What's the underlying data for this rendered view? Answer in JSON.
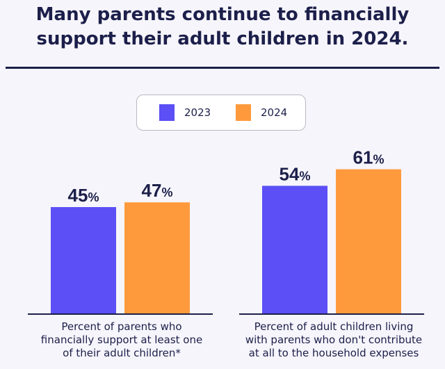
{
  "title": {
    "line1": "Many parents continue to financially",
    "line2": "support their adult children in 2024."
  },
  "legend": [
    {
      "label": "2023",
      "color": "#5b4ff5"
    },
    {
      "label": "2024",
      "color": "#ff9a3c"
    }
  ],
  "chart_data": {
    "type": "bar",
    "title": "Many parents continue to financially support their adult children in 2024.",
    "categories": [
      [
        "Percent of parents who",
        "financially support at least one",
        "of their adult children*"
      ],
      [
        "Percent of adult children living",
        "with parents who don't contribute",
        "at all to the household expenses"
      ]
    ],
    "series": [
      {
        "name": "2023",
        "values": [
          45,
          54
        ],
        "color": "#5b4ff5"
      },
      {
        "name": "2024",
        "values": [
          47,
          61
        ],
        "color": "#ff9a3c"
      }
    ],
    "value_suffix": "%",
    "ylim": [
      0,
      100
    ],
    "xlabel": "",
    "ylabel": ""
  }
}
